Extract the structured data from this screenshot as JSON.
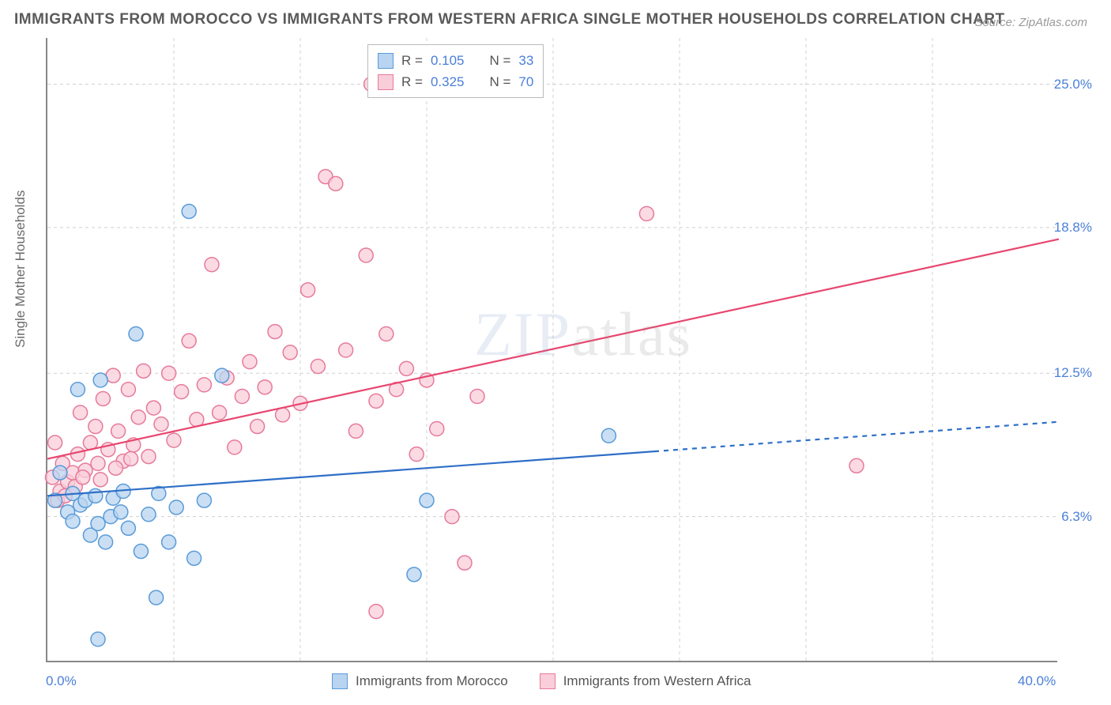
{
  "title": "IMMIGRANTS FROM MOROCCO VS IMMIGRANTS FROM WESTERN AFRICA SINGLE MOTHER HOUSEHOLDS CORRELATION CHART",
  "source": "Source: ZipAtlas.com",
  "y_axis_label": "Single Mother Households",
  "watermark": {
    "part1": "ZIP",
    "part2": "atlas"
  },
  "chart": {
    "type": "scatter",
    "background_color": "#ffffff",
    "grid_color": "#d0d0d0",
    "axis_color": "#888888",
    "xlim": [
      0,
      40
    ],
    "ylim": [
      0,
      27
    ],
    "y_ticks": [
      {
        "value": 6.3,
        "label": "6.3%"
      },
      {
        "value": 12.5,
        "label": "12.5%"
      },
      {
        "value": 18.8,
        "label": "18.8%"
      },
      {
        "value": 25.0,
        "label": "25.0%"
      }
    ],
    "x_ticks": [
      {
        "value": 0,
        "label": "0.0%"
      },
      {
        "value": 40,
        "label": "40.0%"
      }
    ],
    "x_grid_values": [
      5,
      10,
      15,
      20,
      25,
      30,
      35
    ],
    "series": [
      {
        "name": "Immigrants from Morocco",
        "legend_label": "Immigrants from Morocco",
        "R": "0.105",
        "N": "33",
        "marker_fill": "#b8d4f0",
        "marker_stroke": "#5a9bd8",
        "marker_radius": 9,
        "line_color": "#2e6fc7",
        "line_width": 2.2,
        "trend": {
          "x1": 0,
          "y1": 7.2,
          "x2": 40,
          "y2": 10.4,
          "solid_until_x": 24
        },
        "points": [
          [
            0.3,
            7.0
          ],
          [
            0.5,
            8.2
          ],
          [
            0.8,
            6.5
          ],
          [
            1.0,
            7.3
          ],
          [
            1.2,
            11.8
          ],
          [
            1.3,
            6.8
          ],
          [
            1.5,
            7.0
          ],
          [
            1.7,
            5.5
          ],
          [
            1.9,
            7.2
          ],
          [
            2.0,
            6.0
          ],
          [
            2.1,
            12.2
          ],
          [
            2.3,
            5.2
          ],
          [
            2.5,
            6.3
          ],
          [
            2.6,
            7.1
          ],
          [
            2.9,
            6.5
          ],
          [
            3.0,
            7.4
          ],
          [
            3.2,
            5.8
          ],
          [
            3.5,
            14.2
          ],
          [
            3.7,
            4.8
          ],
          [
            4.0,
            6.4
          ],
          [
            4.3,
            2.8
          ],
          [
            4.4,
            7.3
          ],
          [
            4.8,
            5.2
          ],
          [
            5.1,
            6.7
          ],
          [
            5.6,
            19.5
          ],
          [
            5.8,
            4.5
          ],
          [
            6.2,
            7.0
          ],
          [
            6.9,
            12.4
          ],
          [
            2.0,
            1.0
          ],
          [
            14.5,
            3.8
          ],
          [
            15.0,
            7.0
          ],
          [
            22.2,
            9.8
          ],
          [
            1.0,
            6.1
          ]
        ]
      },
      {
        "name": "Immigrants from Western Africa",
        "legend_label": "Immigrants from Western Africa",
        "R": "0.325",
        "N": "70",
        "marker_fill": "#f9cdd9",
        "marker_stroke": "#e67a9a",
        "marker_radius": 9,
        "line_color": "#e8466f",
        "line_width": 2.2,
        "trend": {
          "x1": 0,
          "y1": 8.8,
          "x2": 40,
          "y2": 18.3,
          "solid_until_x": 40
        },
        "points": [
          [
            0.2,
            8.0
          ],
          [
            0.3,
            9.5
          ],
          [
            0.5,
            7.4
          ],
          [
            0.6,
            8.6
          ],
          [
            0.8,
            7.8
          ],
          [
            1.0,
            8.2
          ],
          [
            1.2,
            9.0
          ],
          [
            1.3,
            10.8
          ],
          [
            1.5,
            8.3
          ],
          [
            1.7,
            9.5
          ],
          [
            1.9,
            10.2
          ],
          [
            2.0,
            8.6
          ],
          [
            2.2,
            11.4
          ],
          [
            2.4,
            9.2
          ],
          [
            2.6,
            12.4
          ],
          [
            2.8,
            10.0
          ],
          [
            3.0,
            8.7
          ],
          [
            3.2,
            11.8
          ],
          [
            3.4,
            9.4
          ],
          [
            3.6,
            10.6
          ],
          [
            3.8,
            12.6
          ],
          [
            4.0,
            8.9
          ],
          [
            4.2,
            11.0
          ],
          [
            4.5,
            10.3
          ],
          [
            4.8,
            12.5
          ],
          [
            5.0,
            9.6
          ],
          [
            5.3,
            11.7
          ],
          [
            5.6,
            13.9
          ],
          [
            5.9,
            10.5
          ],
          [
            6.2,
            12.0
          ],
          [
            6.5,
            17.2
          ],
          [
            6.8,
            10.8
          ],
          [
            7.1,
            12.3
          ],
          [
            7.4,
            9.3
          ],
          [
            7.7,
            11.5
          ],
          [
            8.0,
            13.0
          ],
          [
            8.3,
            10.2
          ],
          [
            8.6,
            11.9
          ],
          [
            9.0,
            14.3
          ],
          [
            9.3,
            10.7
          ],
          [
            9.6,
            13.4
          ],
          [
            10.0,
            11.2
          ],
          [
            10.3,
            16.1
          ],
          [
            10.7,
            12.8
          ],
          [
            11.0,
            21.0
          ],
          [
            11.4,
            20.7
          ],
          [
            11.8,
            13.5
          ],
          [
            12.2,
            10.0
          ],
          [
            12.6,
            17.6
          ],
          [
            13.0,
            11.3
          ],
          [
            12.8,
            25.0
          ],
          [
            13.4,
            14.2
          ],
          [
            13.8,
            11.8
          ],
          [
            14.2,
            12.7
          ],
          [
            14.6,
            9.0
          ],
          [
            15.0,
            12.2
          ],
          [
            15.4,
            10.1
          ],
          [
            16.0,
            6.3
          ],
          [
            16.5,
            4.3
          ],
          [
            17.0,
            11.5
          ],
          [
            13.0,
            2.2
          ],
          [
            23.7,
            19.4
          ],
          [
            32.0,
            8.5
          ],
          [
            0.4,
            7.0
          ],
          [
            0.7,
            7.2
          ],
          [
            1.1,
            7.6
          ],
          [
            1.4,
            8.0
          ],
          [
            2.1,
            7.9
          ],
          [
            2.7,
            8.4
          ],
          [
            3.3,
            8.8
          ]
        ]
      }
    ]
  },
  "legend_top": {
    "R_label": "R =",
    "N_label": "N ="
  },
  "colors": {
    "tick_label": "#4a7fd8",
    "title": "#5a5a5a",
    "axis_label": "#6a6a6a"
  },
  "fontsize": {
    "title": 19,
    "tick": 17,
    "legend": 17
  }
}
